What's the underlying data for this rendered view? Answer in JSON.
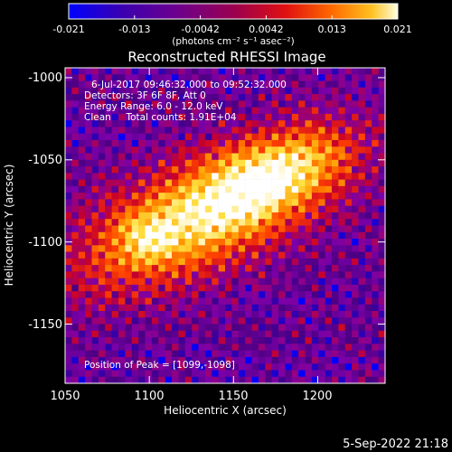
{
  "colorbar": {
    "ticks": [
      "-0.021",
      "-0.013",
      "-0.0042",
      "0.0042",
      "0.013",
      "0.021"
    ],
    "unit_label": "(photons cm⁻² s⁻¹ asec⁻²)",
    "range": [
      -0.021,
      0.021
    ]
  },
  "chart_data": {
    "type": "heatmap",
    "title": "Reconstructed RHESSI Image",
    "xlabel": "Heliocentric X (arcsec)",
    "ylabel": "Heliocentric Y (arcsec)",
    "xlim": [
      1050,
      1240
    ],
    "ylim": [
      -1186,
      -994
    ],
    "xticks": [
      "1050",
      "1100",
      "1150",
      "1200"
    ],
    "yticks": [
      "-1000",
      "-1050",
      "-1100",
      "-1150"
    ],
    "xtick_values": [
      1050,
      1100,
      1150,
      1200
    ],
    "ytick_values": [
      -1000,
      -1050,
      -1100,
      -1150
    ],
    "peak": [
      1099,
      -1098
    ],
    "colormap": [
      "#0000ff",
      "#4b0082",
      "#7b00a8",
      "#c8002a",
      "#ff4000",
      "#ff9800",
      "#ffe040",
      "#ffffff"
    ],
    "annotations": [
      "6-Jul-2017 09:46:32.000 to 09:52:32.000",
      "Detectors: 3F 6F 8F, Att 0",
      "Energy Range: 6.0 - 12.0 keV",
      "Clean     Total counts: 1.91E+04",
      "Position of Peak = [1099,-1098]"
    ]
  },
  "footer": {
    "timestamp": "5-Sep-2022 21:18"
  }
}
